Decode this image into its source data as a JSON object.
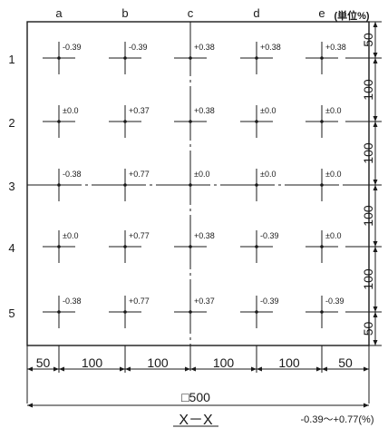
{
  "columns": [
    "a",
    "b",
    "c",
    "d",
    "e"
  ],
  "rows": [
    "1",
    "2",
    "3",
    "4",
    "5"
  ],
  "unit_label": "(単位%)",
  "cells": [
    [
      "-0.39",
      "-0.39",
      "+0.38",
      "+0.38",
      "+0.38"
    ],
    [
      "±0.0",
      "+0.37",
      "+0.38",
      "±0.0",
      "±0.0"
    ],
    [
      "-0.38",
      "+0.77",
      "±0.0",
      "±0.0",
      "±0.0"
    ],
    [
      "±0.0",
      "+0.77",
      "+0.38",
      "-0.39",
      "±0.0"
    ],
    [
      "-0.38",
      "+0.77",
      "+0.37",
      "-0.39",
      "-0.39"
    ]
  ],
  "dimensions": {
    "bottom": [
      "50",
      "100",
      "100",
      "100",
      "100",
      "50"
    ],
    "right": [
      "50",
      "100",
      "100",
      "100",
      "100",
      "50"
    ],
    "total": "□500"
  },
  "section_label": "X－X",
  "range_label": "-0.39～+0.77(%)"
}
